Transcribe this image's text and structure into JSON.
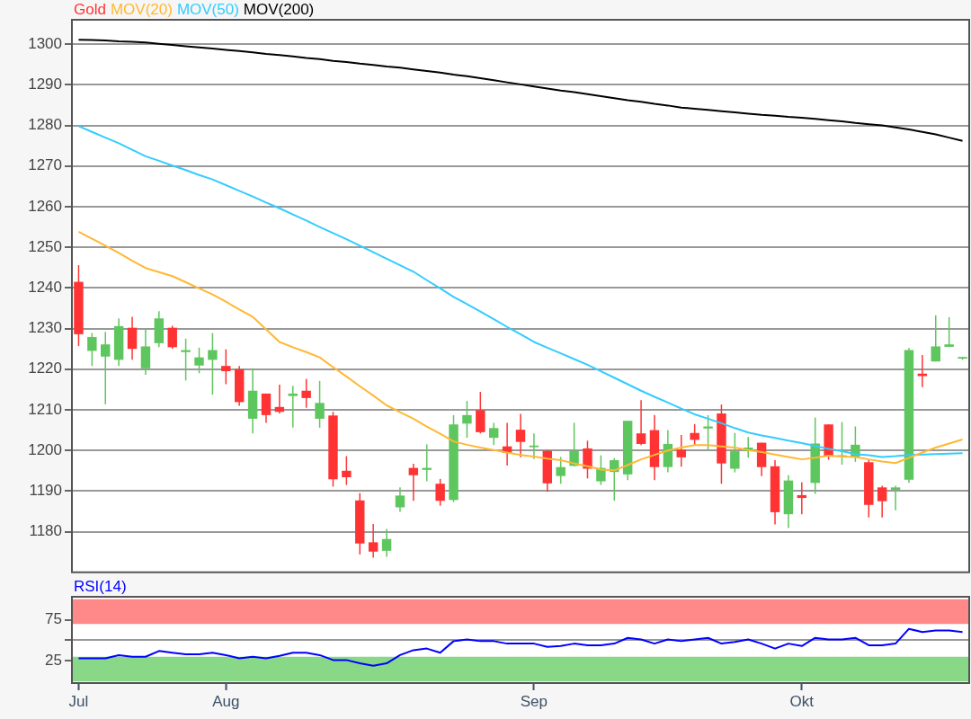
{
  "chart_data": [
    {
      "type": "candlestick",
      "categories": [
        null,
        null,
        null,
        null,
        null,
        null,
        null,
        null,
        null,
        null,
        null,
        null,
        null,
        null,
        null,
        null,
        null,
        null,
        null,
        null,
        null,
        null,
        null,
        null,
        null,
        null,
        null,
        null,
        null,
        null,
        null,
        null,
        null,
        null,
        null,
        null,
        null,
        null,
        null,
        null,
        null,
        null,
        null,
        null,
        null,
        null,
        null,
        null,
        null,
        null,
        null,
        null,
        null,
        null,
        null,
        null,
        null,
        null,
        null,
        null,
        null,
        null,
        null,
        null,
        null,
        null,
        null
      ],
      "ylim": [
        1170,
        1306
      ],
      "yticks": [
        1180,
        1190,
        1200,
        1210,
        1220,
        1230,
        1240,
        1250,
        1260,
        1270,
        1280,
        1290,
        1300
      ],
      "grid": "y",
      "legend": "top left",
      "series": [
        {
          "name": "Gold",
          "type": "candlestick",
          "color": "#ff3333",
          "colors": [
            "#ff3333",
            "#5ec65e",
            "#5ec65e",
            "#5ec65e",
            "#ff3333",
            "#5ec65e",
            "#5ec65e",
            "#ff3333",
            "#5ec65e",
            "#5ec65e",
            "#5ec65e",
            "#ff3333",
            "#ff3333",
            "#5ec65e",
            "#ff3333",
            "#ff3333",
            "#5ec65e",
            "#ff3333",
            "#5ec65e",
            "#ff3333",
            "#ff3333",
            "#ff3333",
            "#ff3333",
            "#5ec65e",
            "#5ec65e",
            "#ff3333",
            "#5ec65e",
            "#ff3333",
            "#5ec65e",
            "#5ec65e",
            "#ff3333",
            "#5ec65e",
            "#ff3333",
            "#ff3333",
            "#5ec65e",
            "#ff3333",
            "#5ec65e",
            "#5ec65e",
            "#ff3333",
            "#5ec65e",
            "#5ec65e",
            "#5ec65e",
            "#ff3333",
            "#ff3333",
            "#5ec65e",
            "#ff3333",
            "#ff3333",
            "#5ec65e",
            "#ff3333",
            "#5ec65e",
            "#5ec65e",
            "#ff3333",
            "#ff3333",
            "#5ec65e",
            "#ff3333",
            "#5ec65e",
            "#ff3333",
            "#5ec65e",
            "#5ec65e",
            "#ff3333",
            "#ff3333",
            "#5ec65e",
            "#5ec65e",
            "#ff3333",
            "#5ec65e",
            "#5ec65e",
            "#5ec65e"
          ],
          "ohlc": [
            [
              1241.5,
              1245.6,
              1225.7,
              1228.6
            ],
            [
              1224.5,
              1228.9,
              1220.8,
              1227.9
            ],
            [
              1223.1,
              1229.2,
              1211.4,
              1226.1
            ],
            [
              1222.3,
              1232.5,
              1220.8,
              1230.6
            ],
            [
              1230.2,
              1232.9,
              1222.3,
              1225.0
            ],
            [
              1220.2,
              1229.8,
              1218.6,
              1225.6
            ],
            [
              1226.4,
              1234.3,
              1225.4,
              1232.5
            ],
            [
              1230.2,
              1230.7,
              1225.0,
              1225.4
            ],
            [
              1224.2,
              1227.5,
              1217.2,
              1224.7
            ],
            [
              1220.9,
              1225.3,
              1219.0,
              1222.9
            ],
            [
              1222.3,
              1228.9,
              1213.7,
              1224.7
            ],
            [
              1220.8,
              1224.9,
              1216.3,
              1219.5
            ],
            [
              1220.0,
              1220.8,
              1211.0,
              1211.9
            ],
            [
              1207.8,
              1220.2,
              1204.2,
              1214.7
            ],
            [
              1214.0,
              1214.0,
              1206.8,
              1208.7
            ],
            [
              1210.7,
              1216.2,
              1209.1,
              1209.5
            ],
            [
              1213.4,
              1215.9,
              1205.6,
              1214.0
            ],
            [
              1214.7,
              1217.6,
              1210.5,
              1212.9
            ],
            [
              1207.8,
              1217.1,
              1205.6,
              1211.7
            ],
            [
              1208.6,
              1209.5,
              1191.1,
              1192.9
            ],
            [
              1195.0,
              1198.6,
              1191.5,
              1193.4
            ],
            [
              1187.7,
              1189.5,
              1174.4,
              1177.1
            ],
            [
              1177.4,
              1181.9,
              1173.6,
              1175.1
            ],
            [
              1175.3,
              1180.7,
              1173.8,
              1178.2
            ],
            [
              1186.0,
              1190.9,
              1184.9,
              1188.9
            ],
            [
              1195.7,
              1196.7,
              1187.6,
              1193.9
            ],
            [
              1195.2,
              1201.5,
              1192.4,
              1195.7
            ],
            [
              1191.8,
              1193.0,
              1186.4,
              1187.6
            ],
            [
              1187.8,
              1208.7,
              1187.3,
              1206.4
            ],
            [
              1206.6,
              1212.2,
              1203.1,
              1208.7
            ],
            [
              1209.9,
              1214.4,
              1204.2,
              1204.5
            ],
            [
              1203.1,
              1206.8,
              1201.3,
              1205.5
            ],
            [
              1201.0,
              1206.8,
              1196.3,
              1199.4
            ],
            [
              1205.1,
              1209.0,
              1198.3,
              1202.1
            ],
            [
              1200.8,
              1204.2,
              1197.9,
              1201.2
            ],
            [
              1199.9,
              1200.1,
              1189.8,
              1191.9
            ],
            [
              1193.7,
              1198.4,
              1191.8,
              1195.9
            ],
            [
              1196.2,
              1206.8,
              1196.1,
              1199.9
            ],
            [
              1200.5,
              1202.4,
              1193.1,
              1195.5
            ],
            [
              1192.4,
              1198.8,
              1191.5,
              1195.7
            ],
            [
              1194.7,
              1198.1,
              1187.6,
              1197.6
            ],
            [
              1194.1,
              1207.3,
              1192.7,
              1207.3
            ],
            [
              1204.2,
              1212.4,
              1201.3,
              1201.6
            ],
            [
              1205.0,
              1208.7,
              1192.7,
              1195.9
            ],
            [
              1195.9,
              1205.0,
              1194.6,
              1201.6
            ],
            [
              1200.2,
              1203.8,
              1196.0,
              1198.3
            ],
            [
              1204.3,
              1206.5,
              1201.3,
              1202.6
            ],
            [
              1205.4,
              1208.7,
              1200.0,
              1205.9
            ],
            [
              1209.1,
              1211.3,
              1191.8,
              1196.8
            ],
            [
              1195.5,
              1204.3,
              1194.6,
              1199.8
            ],
            [
              1199.8,
              1203.3,
              1198.2,
              1200.7
            ],
            [
              1201.9,
              1201.9,
              1193.7,
              1195.9
            ],
            [
              1196.1,
              1197.6,
              1181.8,
              1184.8
            ],
            [
              1184.3,
              1193.9,
              1180.9,
              1192.6
            ],
            [
              1189.0,
              1192.2,
              1184.3,
              1188.3
            ],
            [
              1192.0,
              1208.1,
              1189.3,
              1201.7
            ],
            [
              1206.4,
              1206.4,
              1197.7,
              1198.5
            ],
            [
              1198.5,
              1207.0,
              1196.5,
              1198.8
            ],
            [
              1198.5,
              1205.9,
              1197.2,
              1201.4
            ],
            [
              1197.1,
              1197.6,
              1183.5,
              1186.6
            ],
            [
              1190.9,
              1191.3,
              1183.5,
              1187.5
            ],
            [
              1190.3,
              1191.3,
              1185.3,
              1190.9
            ],
            [
              1192.8,
              1225.2,
              1192.0,
              1224.7
            ],
            [
              1218.9,
              1223.5,
              1215.6,
              1218.3
            ],
            [
              1221.9,
              1233.3,
              1221.9,
              1225.6
            ],
            [
              1225.5,
              1232.8,
              1225.5,
              1226.1
            ],
            [
              1222.6,
              1223.0,
              1222.3,
              1223.0
            ]
          ]
        },
        {
          "name": "MOV(20)",
          "type": "line",
          "color": "#ffb833",
          "values": [
            1253.8,
            1252.1,
            1250.4,
            1248.6,
            1246.7,
            1244.9,
            1243.9,
            1242.9,
            1241.4,
            1239.9,
            1238.4,
            1236.6,
            1234.7,
            1232.9,
            1229.8,
            1226.7,
            1225.4,
            1224.2,
            1222.9,
            1220.5,
            1218.2,
            1215.8,
            1213.5,
            1211.1,
            1209.4,
            1207.8,
            1205.9,
            1204.1,
            1202.2,
            1201.4,
            1200.7,
            1200.1,
            1199.5,
            1198.9,
            1198.5,
            1198.0,
            1197.6,
            1196.8,
            1196.1,
            1195.3,
            1195.1,
            1196.4,
            1197.8,
            1198.9,
            1200.0,
            1200.7,
            1201.3,
            1201.3,
            1201.0,
            1200.7,
            1200.1,
            1199.6,
            1199.0,
            1198.4,
            1197.8,
            1198.2,
            1198.7,
            1198.5,
            1198.4,
            1197.8,
            1197.3,
            1196.9,
            1198.2,
            1199.5,
            1200.7,
            1201.7,
            1202.7
          ]
        },
        {
          "name": "MOV(50)",
          "type": "line",
          "color": "#33ccff",
          "values": [
            1279.8,
            1278.4,
            1277.0,
            1275.6,
            1274.0,
            1272.4,
            1271.3,
            1270.1,
            1269.0,
            1267.8,
            1266.7,
            1265.3,
            1263.9,
            1262.5,
            1261.0,
            1259.6,
            1258.1,
            1256.6,
            1255.0,
            1253.5,
            1252.0,
            1250.4,
            1248.8,
            1247.2,
            1245.6,
            1244.0,
            1241.9,
            1239.9,
            1237.8,
            1236.0,
            1234.2,
            1232.3,
            1230.4,
            1228.6,
            1226.7,
            1225.3,
            1223.9,
            1222.5,
            1221.1,
            1219.5,
            1217.9,
            1216.3,
            1214.7,
            1213.2,
            1211.8,
            1210.3,
            1208.9,
            1207.8,
            1206.7,
            1205.5,
            1204.4,
            1203.7,
            1203.1,
            1202.4,
            1201.8,
            1201.1,
            1200.4,
            1199.8,
            1199.1,
            1198.8,
            1198.4,
            1198.6,
            1198.9,
            1199.0,
            1199.1,
            1199.2,
            1199.3
          ]
        },
        {
          "name": "MOV(200)",
          "type": "line",
          "color": "#000000",
          "values": [
            1301.1,
            1301.0,
            1300.9,
            1300.7,
            1300.6,
            1300.4,
            1300.1,
            1299.8,
            1299.5,
            1299.2,
            1298.9,
            1298.6,
            1298.3,
            1298.0,
            1297.6,
            1297.3,
            1297.0,
            1296.6,
            1296.3,
            1295.9,
            1295.6,
            1295.2,
            1294.9,
            1294.5,
            1294.2,
            1293.8,
            1293.4,
            1293.0,
            1292.5,
            1292.1,
            1291.6,
            1291.1,
            1290.6,
            1290.1,
            1289.6,
            1289.1,
            1288.6,
            1288.2,
            1287.7,
            1287.2,
            1286.7,
            1286.2,
            1285.8,
            1285.3,
            1284.9,
            1284.4,
            1284.1,
            1283.8,
            1283.5,
            1283.2,
            1282.9,
            1282.6,
            1282.4,
            1282.1,
            1281.9,
            1281.6,
            1281.3,
            1281.0,
            1280.6,
            1280.3,
            1280.0,
            1279.5,
            1279.0,
            1278.4,
            1277.8,
            1277.0,
            1276.2
          ]
        }
      ]
    },
    {
      "type": "line",
      "categories": [
        "Jul",
        null,
        null,
        null,
        null,
        null,
        null,
        null,
        null,
        null,
        null,
        "Aug",
        null,
        null,
        null,
        null,
        null,
        null,
        null,
        null,
        null,
        null,
        null,
        null,
        null,
        null,
        null,
        null,
        null,
        null,
        null,
        null,
        null,
        null,
        "Sep",
        null,
        null,
        null,
        null,
        null,
        null,
        null,
        null,
        null,
        null,
        null,
        null,
        null,
        null,
        null,
        null,
        null,
        null,
        null,
        "Okt",
        null,
        null,
        null,
        null,
        null,
        null,
        null,
        null,
        null,
        null,
        null,
        null
      ],
      "ylim": [
        -2,
        103
      ],
      "yticks": [
        25,
        {
          "value": 50,
          "label": null
        },
        75
      ],
      "grid": "y",
      "legend": "top left",
      "bands": [
        {
          "axis": "y",
          "from": 70,
          "to": 100,
          "color": "#ff8888"
        },
        {
          "axis": "y",
          "from": 0,
          "to": 30,
          "color": "#88d888"
        }
      ],
      "series": [
        {
          "name": "RSI(14)",
          "color": "#0000ff",
          "values": [
            28,
            28,
            28,
            32,
            30,
            30,
            37,
            35,
            33,
            33,
            35,
            32,
            28,
            30,
            28,
            31,
            35,
            35,
            32,
            26,
            26,
            22,
            19,
            22,
            32,
            38,
            40,
            35,
            49,
            51,
            49,
            49,
            46,
            46,
            46,
            42,
            43,
            46,
            44,
            44,
            46,
            53,
            51,
            46,
            51,
            49,
            51,
            53,
            46,
            48,
            51,
            46,
            40,
            46,
            43,
            53,
            51,
            51,
            53,
            44,
            44,
            46,
            64,
            60,
            62,
            62,
            60
          ]
        }
      ]
    }
  ]
}
